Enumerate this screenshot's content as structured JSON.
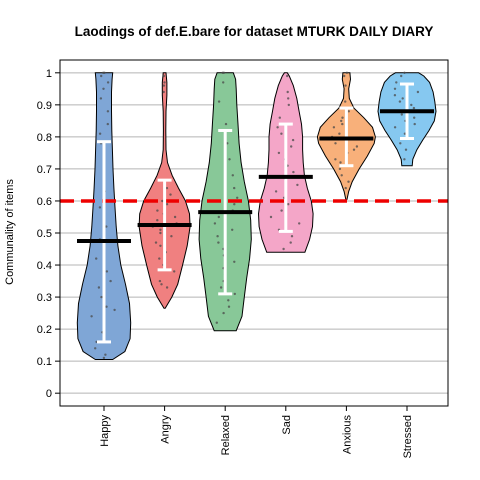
{
  "chart_data": {
    "type": "violin",
    "title": "Laodings of def.E.bare for dataset MTURK DAILY DIARY",
    "xlabel": "",
    "ylabel": "Communality of items",
    "ylim": [
      -0.04,
      1.04
    ],
    "yticks": [
      0,
      0.1,
      0.2,
      0.3,
      0.4,
      0.5,
      0.6,
      0.7,
      0.8,
      0.9,
      1
    ],
    "ytick_labels": [
      "0",
      "0.1",
      "0.2",
      "0.3",
      "0.4",
      "0.5",
      "0.6",
      "0.7",
      "0.8",
      "0.9",
      "1"
    ],
    "grid": true,
    "reference_line": {
      "value": 0.6,
      "style": "dashed",
      "color": "#ee0000"
    },
    "categories": [
      "Happy",
      "Angry",
      "Relaxed",
      "Sad",
      "Anxious",
      "Stressed"
    ],
    "series": [
      {
        "color": "#7fa6d6",
        "median": 0.475,
        "error_low": 0.16,
        "error_high": 0.785,
        "min": 0.105,
        "max": 1.0,
        "density": [
          [
            0.105,
            0.3
          ],
          [
            0.13,
            0.72
          ],
          [
            0.17,
            0.9
          ],
          [
            0.22,
            0.92
          ],
          [
            0.28,
            0.88
          ],
          [
            0.34,
            0.74
          ],
          [
            0.4,
            0.58
          ],
          [
            0.46,
            0.48
          ],
          [
            0.52,
            0.42
          ],
          [
            0.58,
            0.38
          ],
          [
            0.64,
            0.34
          ],
          [
            0.7,
            0.31
          ],
          [
            0.76,
            0.29
          ],
          [
            0.82,
            0.27
          ],
          [
            0.88,
            0.26
          ],
          [
            0.94,
            0.26
          ],
          [
            0.98,
            0.28
          ],
          [
            1.0,
            0.3
          ]
        ],
        "points": [
          0.11,
          0.12,
          0.14,
          0.16,
          0.19,
          0.21,
          0.24,
          0.26,
          0.27,
          0.3,
          0.33,
          0.35,
          0.38,
          0.42,
          0.45,
          0.48,
          0.52,
          0.58,
          0.63,
          0.72,
          0.78,
          0.81,
          0.84,
          0.88,
          0.92,
          0.95,
          0.97,
          0.99,
          1.0,
          1.0
        ]
      },
      {
        "color": "#f08080",
        "median": 0.525,
        "error_low": 0.385,
        "error_high": 0.665,
        "min": 0.265,
        "max": 1.0,
        "density": [
          [
            0.265,
            0.02
          ],
          [
            0.3,
            0.25
          ],
          [
            0.34,
            0.45
          ],
          [
            0.4,
            0.62
          ],
          [
            0.46,
            0.78
          ],
          [
            0.52,
            0.88
          ],
          [
            0.56,
            0.86
          ],
          [
            0.6,
            0.72
          ],
          [
            0.64,
            0.48
          ],
          [
            0.68,
            0.26
          ],
          [
            0.72,
            0.1
          ],
          [
            0.76,
            0.05
          ],
          [
            0.82,
            0.04
          ],
          [
            0.88,
            0.05
          ],
          [
            0.93,
            0.08
          ],
          [
            0.97,
            0.08
          ],
          [
            1.0,
            0.05
          ]
        ],
        "points": [
          0.33,
          0.34,
          0.35,
          0.38,
          0.4,
          0.42,
          0.44,
          0.46,
          0.47,
          0.49,
          0.5,
          0.51,
          0.52,
          0.53,
          0.54,
          0.55,
          0.56,
          0.57,
          0.59,
          0.6,
          0.62,
          0.64,
          0.94,
          0.96,
          0.97,
          0.99
        ]
      },
      {
        "color": "#88c898",
        "median": 0.565,
        "error_low": 0.31,
        "error_high": 0.82,
        "min": 0.195,
        "max": 1.0,
        "density": [
          [
            0.195,
            0.38
          ],
          [
            0.24,
            0.58
          ],
          [
            0.3,
            0.66
          ],
          [
            0.36,
            0.74
          ],
          [
            0.42,
            0.84
          ],
          [
            0.48,
            0.9
          ],
          [
            0.54,
            0.88
          ],
          [
            0.6,
            0.8
          ],
          [
            0.66,
            0.66
          ],
          [
            0.72,
            0.55
          ],
          [
            0.78,
            0.48
          ],
          [
            0.84,
            0.44
          ],
          [
            0.9,
            0.4
          ],
          [
            0.95,
            0.38
          ],
          [
            0.98,
            0.36
          ],
          [
            1.0,
            0.28
          ]
        ],
        "points": [
          0.22,
          0.25,
          0.27,
          0.29,
          0.31,
          0.33,
          0.35,
          0.37,
          0.39,
          0.41,
          0.43,
          0.45,
          0.47,
          0.49,
          0.51,
          0.53,
          0.55,
          0.57,
          0.59,
          0.61,
          0.64,
          0.68,
          0.73,
          0.78,
          0.84,
          0.91,
          0.97,
          1.0,
          1.0
        ]
      },
      {
        "color": "#f4a6c8",
        "median": 0.675,
        "error_low": 0.505,
        "error_high": 0.84,
        "min": 0.44,
        "max": 1.0,
        "density": [
          [
            0.44,
            0.66
          ],
          [
            0.48,
            0.82
          ],
          [
            0.52,
            0.92
          ],
          [
            0.56,
            0.94
          ],
          [
            0.6,
            0.88
          ],
          [
            0.64,
            0.74
          ],
          [
            0.68,
            0.64
          ],
          [
            0.72,
            0.6
          ],
          [
            0.76,
            0.58
          ],
          [
            0.8,
            0.58
          ],
          [
            0.84,
            0.54
          ],
          [
            0.88,
            0.46
          ],
          [
            0.92,
            0.38
          ],
          [
            0.96,
            0.26
          ],
          [
            0.99,
            0.12
          ],
          [
            1.0,
            0.05
          ]
        ],
        "points": [
          0.45,
          0.47,
          0.49,
          0.51,
          0.53,
          0.55,
          0.57,
          0.59,
          0.61,
          0.63,
          0.65,
          0.67,
          0.69,
          0.71,
          0.73,
          0.75,
          0.77,
          0.79,
          0.81,
          0.83,
          0.86,
          0.9,
          0.92,
          0.94,
          0.99
        ]
      },
      {
        "color": "#f8b07a",
        "median": 0.795,
        "error_low": 0.71,
        "error_high": 0.89,
        "min": 0.605,
        "max": 1.0,
        "density": [
          [
            0.605,
            0.02
          ],
          [
            0.63,
            0.08
          ],
          [
            0.66,
            0.2
          ],
          [
            0.7,
            0.44
          ],
          [
            0.74,
            0.72
          ],
          [
            0.78,
            0.96
          ],
          [
            0.8,
            1.0
          ],
          [
            0.83,
            0.9
          ],
          [
            0.86,
            0.6
          ],
          [
            0.89,
            0.26
          ],
          [
            0.92,
            0.1
          ],
          [
            0.95,
            0.08
          ],
          [
            0.98,
            0.14
          ],
          [
            1.0,
            0.12
          ]
        ],
        "points": [
          0.64,
          0.66,
          0.68,
          0.7,
          0.72,
          0.73,
          0.75,
          0.76,
          0.77,
          0.78,
          0.79,
          0.8,
          0.81,
          0.82,
          0.83,
          0.84,
          0.85,
          0.86,
          0.88,
          0.91,
          0.96,
          0.99,
          1.0
        ]
      },
      {
        "color": "#86c8f0",
        "median": 0.88,
        "error_low": 0.795,
        "error_high": 0.965,
        "min": 0.71,
        "max": 1.0,
        "density": [
          [
            0.71,
            0.18
          ],
          [
            0.73,
            0.2
          ],
          [
            0.76,
            0.34
          ],
          [
            0.79,
            0.54
          ],
          [
            0.82,
            0.76
          ],
          [
            0.85,
            0.94
          ],
          [
            0.88,
            1.0
          ],
          [
            0.91,
            0.96
          ],
          [
            0.94,
            0.9
          ],
          [
            0.97,
            0.78
          ],
          [
            0.99,
            0.58
          ],
          [
            1.0,
            0.4
          ]
        ],
        "points": [
          0.73,
          0.76,
          0.78,
          0.8,
          0.81,
          0.83,
          0.84,
          0.85,
          0.86,
          0.87,
          0.88,
          0.89,
          0.9,
          0.91,
          0.92,
          0.93,
          0.94,
          0.95,
          0.97,
          0.99,
          1.0
        ]
      }
    ]
  }
}
